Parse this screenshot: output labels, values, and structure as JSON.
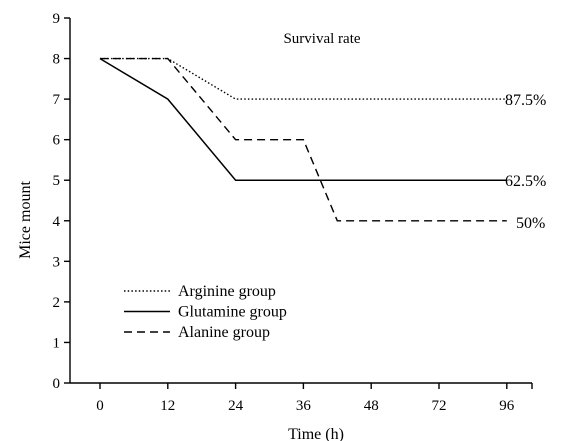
{
  "chart_data": {
    "type": "line",
    "title": "Survival rate",
    "xlabel": "Time (h)",
    "ylabel": "Mice mount",
    "categories": [
      "0",
      "12",
      "24",
      "36",
      "48",
      "72",
      "96"
    ],
    "ylim": [
      0,
      9
    ],
    "yticks": [
      "0",
      "1",
      "2",
      "3",
      "4",
      "5",
      "6",
      "7",
      "8",
      "9"
    ],
    "grid": false,
    "legend_position": "bottom-left",
    "series": [
      {
        "name": "Arginine group",
        "style": "dotted",
        "color": "#000000",
        "points": [
          [
            0,
            8
          ],
          [
            1,
            8
          ],
          [
            2,
            7
          ],
          [
            3,
            7
          ],
          [
            4,
            7
          ],
          [
            5,
            7
          ],
          [
            6,
            7
          ]
        ],
        "end_label": "87.5%"
      },
      {
        "name": "Glutamine group",
        "style": "solid",
        "color": "#000000",
        "points": [
          [
            0,
            8
          ],
          [
            1,
            7
          ],
          [
            2,
            5
          ],
          [
            3,
            5
          ],
          [
            4,
            5
          ],
          [
            5,
            5
          ],
          [
            6,
            5
          ]
        ],
        "end_label": "62.5%"
      },
      {
        "name": "Alanine group",
        "style": "dashed",
        "color": "#000000",
        "points": [
          [
            0,
            8
          ],
          [
            1,
            8
          ],
          [
            2,
            6
          ],
          [
            3,
            6
          ],
          [
            3.5,
            4
          ],
          [
            4,
            4
          ],
          [
            5,
            4
          ],
          [
            6,
            4
          ]
        ],
        "end_label": "50%"
      }
    ]
  }
}
